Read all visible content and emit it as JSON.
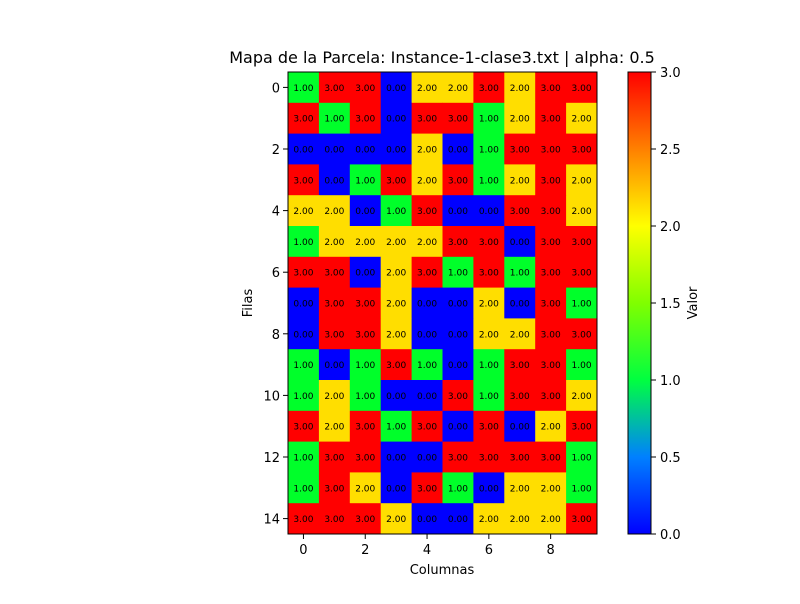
{
  "chart_data": {
    "type": "heatmap",
    "title": "Mapa de la Parcela: Instance-1-clase3.txt | alpha: 0.5",
    "xlabel": "Columnas",
    "ylabel": "Filas",
    "colorbar_label": "Valor",
    "xticks": [
      0,
      2,
      4,
      6,
      8
    ],
    "yticks": [
      0,
      2,
      4,
      6,
      8,
      10,
      12,
      14
    ],
    "colorbar_ticks": [
      0.0,
      0.5,
      1.0,
      1.5,
      2.0,
      2.5,
      3.0
    ],
    "colorbar_tick_labels": [
      "0.0",
      "0.5",
      "1.0",
      "1.5",
      "2.0",
      "2.5",
      "3.0"
    ],
    "vmin": 0,
    "vmax": 3,
    "colormap": [
      "#0000ff",
      "#00ffff",
      "#00ff00",
      "#ffff00",
      "#ff0000"
    ],
    "cell_colors": {
      "0": "#0000ff",
      "1": "#00ff2a",
      "2": "#ffde00",
      "3": "#ff0000"
    },
    "values": [
      [
        1,
        3,
        3,
        0,
        2,
        2,
        3,
        2,
        3,
        3
      ],
      [
        3,
        1,
        3,
        0,
        3,
        3,
        1,
        2,
        3,
        2
      ],
      [
        0,
        0,
        0,
        0,
        2,
        0,
        1,
        3,
        3,
        3
      ],
      [
        3,
        0,
        1,
        3,
        2,
        3,
        1,
        2,
        3,
        2
      ],
      [
        2,
        2,
        0,
        1,
        3,
        0,
        0,
        3,
        3,
        2
      ],
      [
        1,
        2,
        2,
        2,
        2,
        3,
        3,
        0,
        3,
        3
      ],
      [
        3,
        3,
        0,
        2,
        3,
        1,
        3,
        1,
        3,
        3
      ],
      [
        0,
        3,
        3,
        2,
        0,
        0,
        2,
        0,
        3,
        1
      ],
      [
        0,
        3,
        3,
        2,
        0,
        0,
        2,
        2,
        3,
        3
      ],
      [
        1,
        0,
        1,
        3,
        1,
        0,
        1,
        3,
        3,
        1
      ],
      [
        1,
        2,
        1,
        0,
        0,
        3,
        1,
        3,
        3,
        2
      ],
      [
        3,
        2,
        3,
        1,
        3,
        0,
        3,
        0,
        2,
        3
      ],
      [
        1,
        3,
        3,
        0,
        0,
        3,
        3,
        3,
        3,
        1
      ],
      [
        1,
        3,
        2,
        0,
        3,
        1,
        0,
        2,
        2,
        1
      ],
      [
        3,
        3,
        3,
        2,
        0,
        0,
        2,
        2,
        2,
        3
      ]
    ]
  }
}
